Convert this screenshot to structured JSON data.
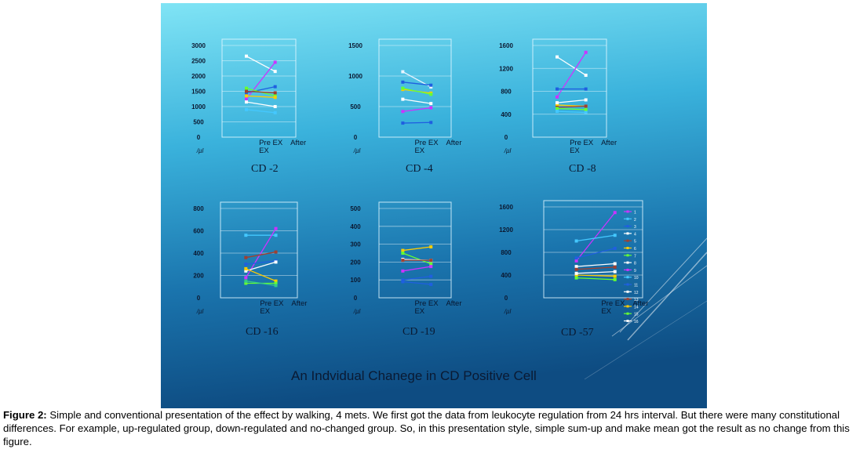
{
  "slide_title": "An Indvidual Chanege in CD Positive Cell",
  "caption": {
    "label": "Figure 2:",
    "text": "Simple and conventional presentation of the effect by walking, 4 mets. We first got the data from leukocyte regulation from 24 hrs interval. But there were many constitutional differences. For example, up-regulated group, down-regulated and no-changed group. So, in this presentation style, simple sum-up and make mean got the result as no change from this figure."
  },
  "colors": {
    "slide_top": "#7fe3f4",
    "slide_bottom": "#0f4f86"
  },
  "chart_data": [
    {
      "type": "line",
      "title": "CD -2",
      "unit": "/µl",
      "categories": [
        "Pre EX",
        "After EX"
      ],
      "category_labels": [
        "Pre EX",
        "After",
        "EX"
      ],
      "yticks": [
        "3000",
        "2500",
        "2000",
        "1500",
        "1000",
        "500",
        "0"
      ],
      "ylim": [
        0,
        3000
      ],
      "series": [
        {
          "color": "#ffffff",
          "values": [
            2650,
            2150
          ]
        },
        {
          "color": "#cc33ff",
          "values": [
            1250,
            2450
          ]
        },
        {
          "color": "#1f5fe0",
          "values": [
            1450,
            1650
          ]
        },
        {
          "color": "#66ff33",
          "values": [
            1600,
            1350
          ]
        },
        {
          "color": "#ffcc00",
          "values": [
            1350,
            1300
          ]
        },
        {
          "color": "#a04030",
          "values": [
            1500,
            1450
          ]
        },
        {
          "color": "#ffffff",
          "values": [
            1150,
            1000
          ]
        },
        {
          "color": "#44c8ff",
          "values": [
            900,
            800
          ]
        }
      ]
    },
    {
      "type": "line",
      "title": "CD -4",
      "unit": "/µl",
      "categories": [
        "Pre EX",
        "After EX"
      ],
      "category_labels": [
        "Pre EX",
        "After",
        "EX"
      ],
      "yticks": [
        "1500",
        "1000",
        "500",
        "0"
      ],
      "ylim": [
        0,
        1500
      ],
      "series": [
        {
          "color": "#e8f4ff",
          "values": [
            1070,
            820
          ]
        },
        {
          "color": "#1f5fe0",
          "values": [
            900,
            850
          ]
        },
        {
          "color": "#ffcc00",
          "values": [
            780,
            720
          ]
        },
        {
          "color": "#66ff33",
          "values": [
            800,
            700
          ]
        },
        {
          "color": "#ffffff",
          "values": [
            620,
            550
          ]
        },
        {
          "color": "#cc33ff",
          "values": [
            420,
            480
          ]
        },
        {
          "color": "#1f5fe0",
          "values": [
            230,
            240
          ]
        }
      ]
    },
    {
      "type": "line",
      "title": "CD -8",
      "unit": "/µl",
      "categories": [
        "Pre EX",
        "After EX"
      ],
      "category_labels": [
        "Pre EX",
        "After",
        "EX"
      ],
      "yticks": [
        "1600",
        "1200",
        "800",
        "400",
        "0"
      ],
      "ylim": [
        0,
        1600
      ],
      "series": [
        {
          "color": "#ffffff",
          "values": [
            1400,
            1080
          ]
        },
        {
          "color": "#cc33ff",
          "values": [
            700,
            1480
          ]
        },
        {
          "color": "#1f5fe0",
          "values": [
            840,
            840
          ]
        },
        {
          "color": "#ffcc00",
          "values": [
            560,
            540
          ]
        },
        {
          "color": "#a04030",
          "values": [
            520,
            540
          ]
        },
        {
          "color": "#ffffff",
          "values": [
            600,
            650
          ]
        },
        {
          "color": "#66ff33",
          "values": [
            500,
            480
          ]
        },
        {
          "color": "#44c8ff",
          "values": [
            450,
            430
          ]
        }
      ]
    },
    {
      "type": "line",
      "title": "CD -16",
      "unit": "/µl",
      "categories": [
        "Pre EX",
        "After EX"
      ],
      "category_labels": [
        "Pre EX",
        "After",
        "EX"
      ],
      "yticks": [
        "800",
        "600",
        "400",
        "200",
        "0"
      ],
      "ylim": [
        0,
        800
      ],
      "series": [
        {
          "color": "#44c8ff",
          "values": [
            560,
            560
          ]
        },
        {
          "color": "#cc33ff",
          "values": [
            180,
            620
          ]
        },
        {
          "color": "#a04030",
          "values": [
            360,
            410
          ]
        },
        {
          "color": "#1f5fe0",
          "values": [
            300,
            330
          ]
        },
        {
          "color": "#ffffff",
          "values": [
            240,
            320
          ]
        },
        {
          "color": "#ffcc00",
          "values": [
            260,
            150
          ]
        },
        {
          "color": "#66ff33",
          "values": [
            130,
            130
          ]
        },
        {
          "color": "#33cc88",
          "values": [
            150,
            110
          ]
        }
      ]
    },
    {
      "type": "line",
      "title": "CD -19",
      "unit": "/µl",
      "categories": [
        "Pre EX",
        "After EX"
      ],
      "category_labels": [
        "Pre EX",
        "After",
        "EX"
      ],
      "yticks": [
        "500",
        "400",
        "300",
        "200",
        "100",
        "0"
      ],
      "ylim": [
        0,
        500
      ],
      "series": [
        {
          "color": "#ffcc00",
          "values": [
            265,
            285
          ]
        },
        {
          "color": "#66ff33",
          "values": [
            250,
            190
          ]
        },
        {
          "color": "#ffffff",
          "values": [
            215,
            210
          ]
        },
        {
          "color": "#a04030",
          "values": [
            210,
            210
          ]
        },
        {
          "color": "#cc33ff",
          "values": [
            150,
            175
          ]
        },
        {
          "color": "#1f5fe0",
          "values": [
            100,
            120
          ]
        },
        {
          "color": "#1f5fe0",
          "values": [
            90,
            75
          ]
        }
      ]
    },
    {
      "type": "line",
      "title": "CD -57",
      "unit": "/µl",
      "categories": [
        "Pre EX",
        "After EX"
      ],
      "category_labels": [
        "Pre EX",
        "After",
        "EX"
      ],
      "yticks": [
        "1600",
        "1200",
        "800",
        "400",
        "0"
      ],
      "ylim": [
        0,
        1600
      ],
      "legend_labels": [
        "1",
        "2",
        "3",
        "4",
        "5",
        "6",
        "7",
        "8",
        "9",
        "10",
        "11",
        "12",
        "13",
        "14",
        "15",
        "16"
      ],
      "series": [
        {
          "color": "#cc33ff",
          "values": [
            650,
            1500
          ]
        },
        {
          "color": "#44c8ff",
          "values": [
            1000,
            1100
          ]
        },
        {
          "color": "#1f5fe0",
          "values": [
            700,
            870
          ]
        },
        {
          "color": "#ffffff",
          "values": [
            550,
            600
          ]
        },
        {
          "color": "#a04030",
          "values": [
            500,
            540
          ]
        },
        {
          "color": "#ffcc00",
          "values": [
            400,
            380
          ]
        },
        {
          "color": "#66ff33",
          "values": [
            350,
            320
          ]
        },
        {
          "color": "#ffffff",
          "values": [
            430,
            460
          ]
        }
      ]
    }
  ]
}
